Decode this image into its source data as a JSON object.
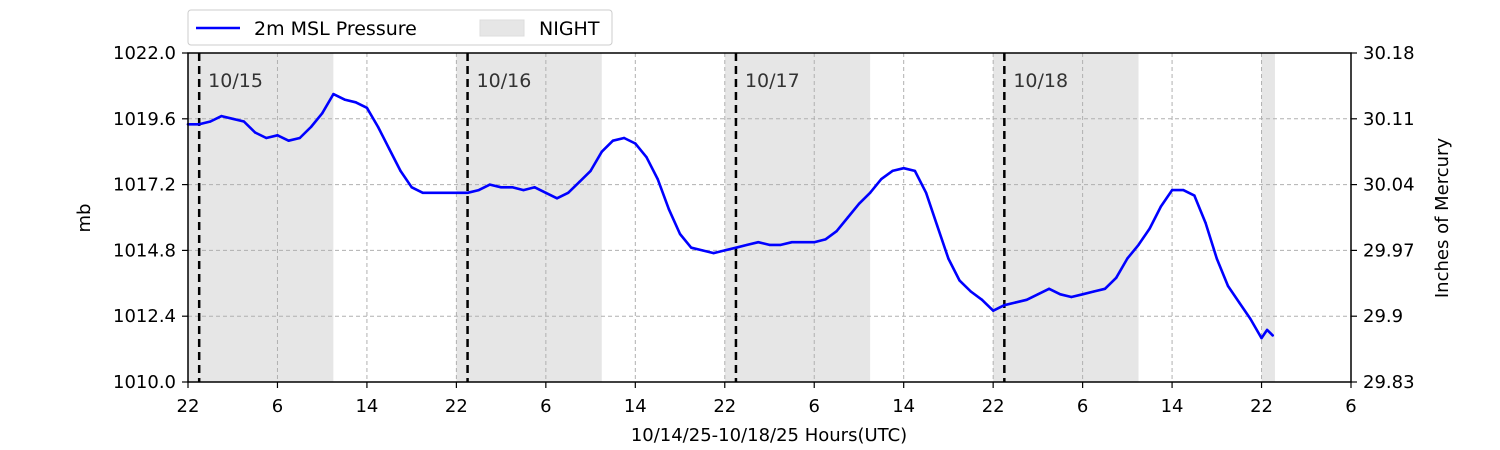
{
  "chart_data": {
    "type": "line",
    "x_unit": "hours (UTC) elapsed from 10/14/25 22:00",
    "xlabel": "10/14/25-10/18/25  Hours(UTC)",
    "ylabel": "mb",
    "ylabel_right": "Inches of Mercury",
    "xlim": [
      0,
      104
    ],
    "ylim": [
      1010.0,
      1022.0
    ],
    "ylim_right": [
      29.83,
      30.18
    ],
    "x_ticks": [
      {
        "x": 0,
        "label": "22"
      },
      {
        "x": 8,
        "label": "6"
      },
      {
        "x": 16,
        "label": "14"
      },
      {
        "x": 24,
        "label": "22"
      },
      {
        "x": 32,
        "label": "6"
      },
      {
        "x": 40,
        "label": "14"
      },
      {
        "x": 48,
        "label": "22"
      },
      {
        "x": 56,
        "label": "6"
      },
      {
        "x": 64,
        "label": "14"
      },
      {
        "x": 72,
        "label": "22"
      },
      {
        "x": 80,
        "label": "6"
      },
      {
        "x": 88,
        "label": "14"
      },
      {
        "x": 96,
        "label": "22"
      },
      {
        "x": 104,
        "label": "6"
      }
    ],
    "y_ticks": [
      "1010.0",
      "1012.4",
      "1014.8",
      "1017.2",
      "1019.6",
      "1022.0"
    ],
    "y_ticks_right": [
      "29.83",
      "29.9",
      "29.97",
      "30.04",
      "30.11",
      "30.18"
    ],
    "grid": true,
    "legend": {
      "placement": "above-top-left",
      "entries": [
        {
          "label": "2m MSL Pressure",
          "color": "#0000ff",
          "kind": "line"
        },
        {
          "label": "NIGHT",
          "color": "#e6e6e6",
          "kind": "patch"
        }
      ]
    },
    "night_periods": [
      [
        0,
        13
      ],
      [
        24,
        37
      ],
      [
        48,
        61
      ],
      [
        72,
        85
      ],
      [
        96,
        97.2
      ]
    ],
    "date_markers": [
      {
        "x": 1,
        "label": "10/15"
      },
      {
        "x": 25,
        "label": "10/16"
      },
      {
        "x": 49,
        "label": "10/17"
      },
      {
        "x": 73,
        "label": "10/18"
      }
    ],
    "series": [
      {
        "name": "2m MSL Pressure",
        "color": "#0000ff",
        "points": [
          [
            0,
            1019.4
          ],
          [
            1,
            1019.4
          ],
          [
            2,
            1019.5
          ],
          [
            3,
            1019.7
          ],
          [
            4,
            1019.6
          ],
          [
            5,
            1019.5
          ],
          [
            6,
            1019.1
          ],
          [
            7,
            1018.9
          ],
          [
            8,
            1019.0
          ],
          [
            9,
            1018.8
          ],
          [
            10,
            1018.9
          ],
          [
            11,
            1019.3
          ],
          [
            12,
            1019.8
          ],
          [
            13,
            1020.5
          ],
          [
            14,
            1020.3
          ],
          [
            15,
            1020.2
          ],
          [
            16,
            1020.0
          ],
          [
            17,
            1019.3
          ],
          [
            18,
            1018.5
          ],
          [
            19,
            1017.7
          ],
          [
            20,
            1017.1
          ],
          [
            21,
            1016.9
          ],
          [
            22,
            1016.9
          ],
          [
            23,
            1016.9
          ],
          [
            24,
            1016.9
          ],
          [
            25,
            1016.9
          ],
          [
            26,
            1017.0
          ],
          [
            27,
            1017.2
          ],
          [
            28,
            1017.1
          ],
          [
            29,
            1017.1
          ],
          [
            30,
            1017.0
          ],
          [
            31,
            1017.1
          ],
          [
            32,
            1016.9
          ],
          [
            33,
            1016.7
          ],
          [
            34,
            1016.9
          ],
          [
            35,
            1017.3
          ],
          [
            36,
            1017.7
          ],
          [
            37,
            1018.4
          ],
          [
            38,
            1018.8
          ],
          [
            39,
            1018.9
          ],
          [
            40,
            1018.7
          ],
          [
            41,
            1018.2
          ],
          [
            42,
            1017.4
          ],
          [
            43,
            1016.3
          ],
          [
            44,
            1015.4
          ],
          [
            45,
            1014.9
          ],
          [
            46,
            1014.8
          ],
          [
            47,
            1014.7
          ],
          [
            48,
            1014.8
          ],
          [
            49,
            1014.9
          ],
          [
            50,
            1015.0
          ],
          [
            51,
            1015.1
          ],
          [
            52,
            1015.0
          ],
          [
            53,
            1015.0
          ],
          [
            54,
            1015.1
          ],
          [
            55,
            1015.1
          ],
          [
            56,
            1015.1
          ],
          [
            57,
            1015.2
          ],
          [
            58,
            1015.5
          ],
          [
            59,
            1016.0
          ],
          [
            60,
            1016.5
          ],
          [
            61,
            1016.9
          ],
          [
            62,
            1017.4
          ],
          [
            63,
            1017.7
          ],
          [
            64,
            1017.8
          ],
          [
            65,
            1017.7
          ],
          [
            66,
            1016.9
          ],
          [
            67,
            1015.7
          ],
          [
            68,
            1014.5
          ],
          [
            69,
            1013.7
          ],
          [
            70,
            1013.3
          ],
          [
            71,
            1013.0
          ],
          [
            72,
            1012.6
          ],
          [
            73,
            1012.8
          ],
          [
            74,
            1012.9
          ],
          [
            75,
            1013.0
          ],
          [
            76,
            1013.2
          ],
          [
            77,
            1013.4
          ],
          [
            78,
            1013.2
          ],
          [
            79,
            1013.1
          ],
          [
            80,
            1013.2
          ],
          [
            81,
            1013.3
          ],
          [
            82,
            1013.4
          ],
          [
            83,
            1013.8
          ],
          [
            84,
            1014.5
          ],
          [
            85,
            1015.0
          ],
          [
            86,
            1015.6
          ],
          [
            87,
            1016.4
          ],
          [
            88,
            1017.0
          ],
          [
            89,
            1017.0
          ],
          [
            90,
            1016.8
          ],
          [
            91,
            1015.8
          ],
          [
            92,
            1014.5
          ],
          [
            93,
            1013.5
          ],
          [
            94,
            1012.9
          ],
          [
            95,
            1012.3
          ],
          [
            96,
            1011.6
          ],
          [
            96.5,
            1011.9
          ],
          [
            97,
            1011.7
          ]
        ]
      }
    ]
  }
}
